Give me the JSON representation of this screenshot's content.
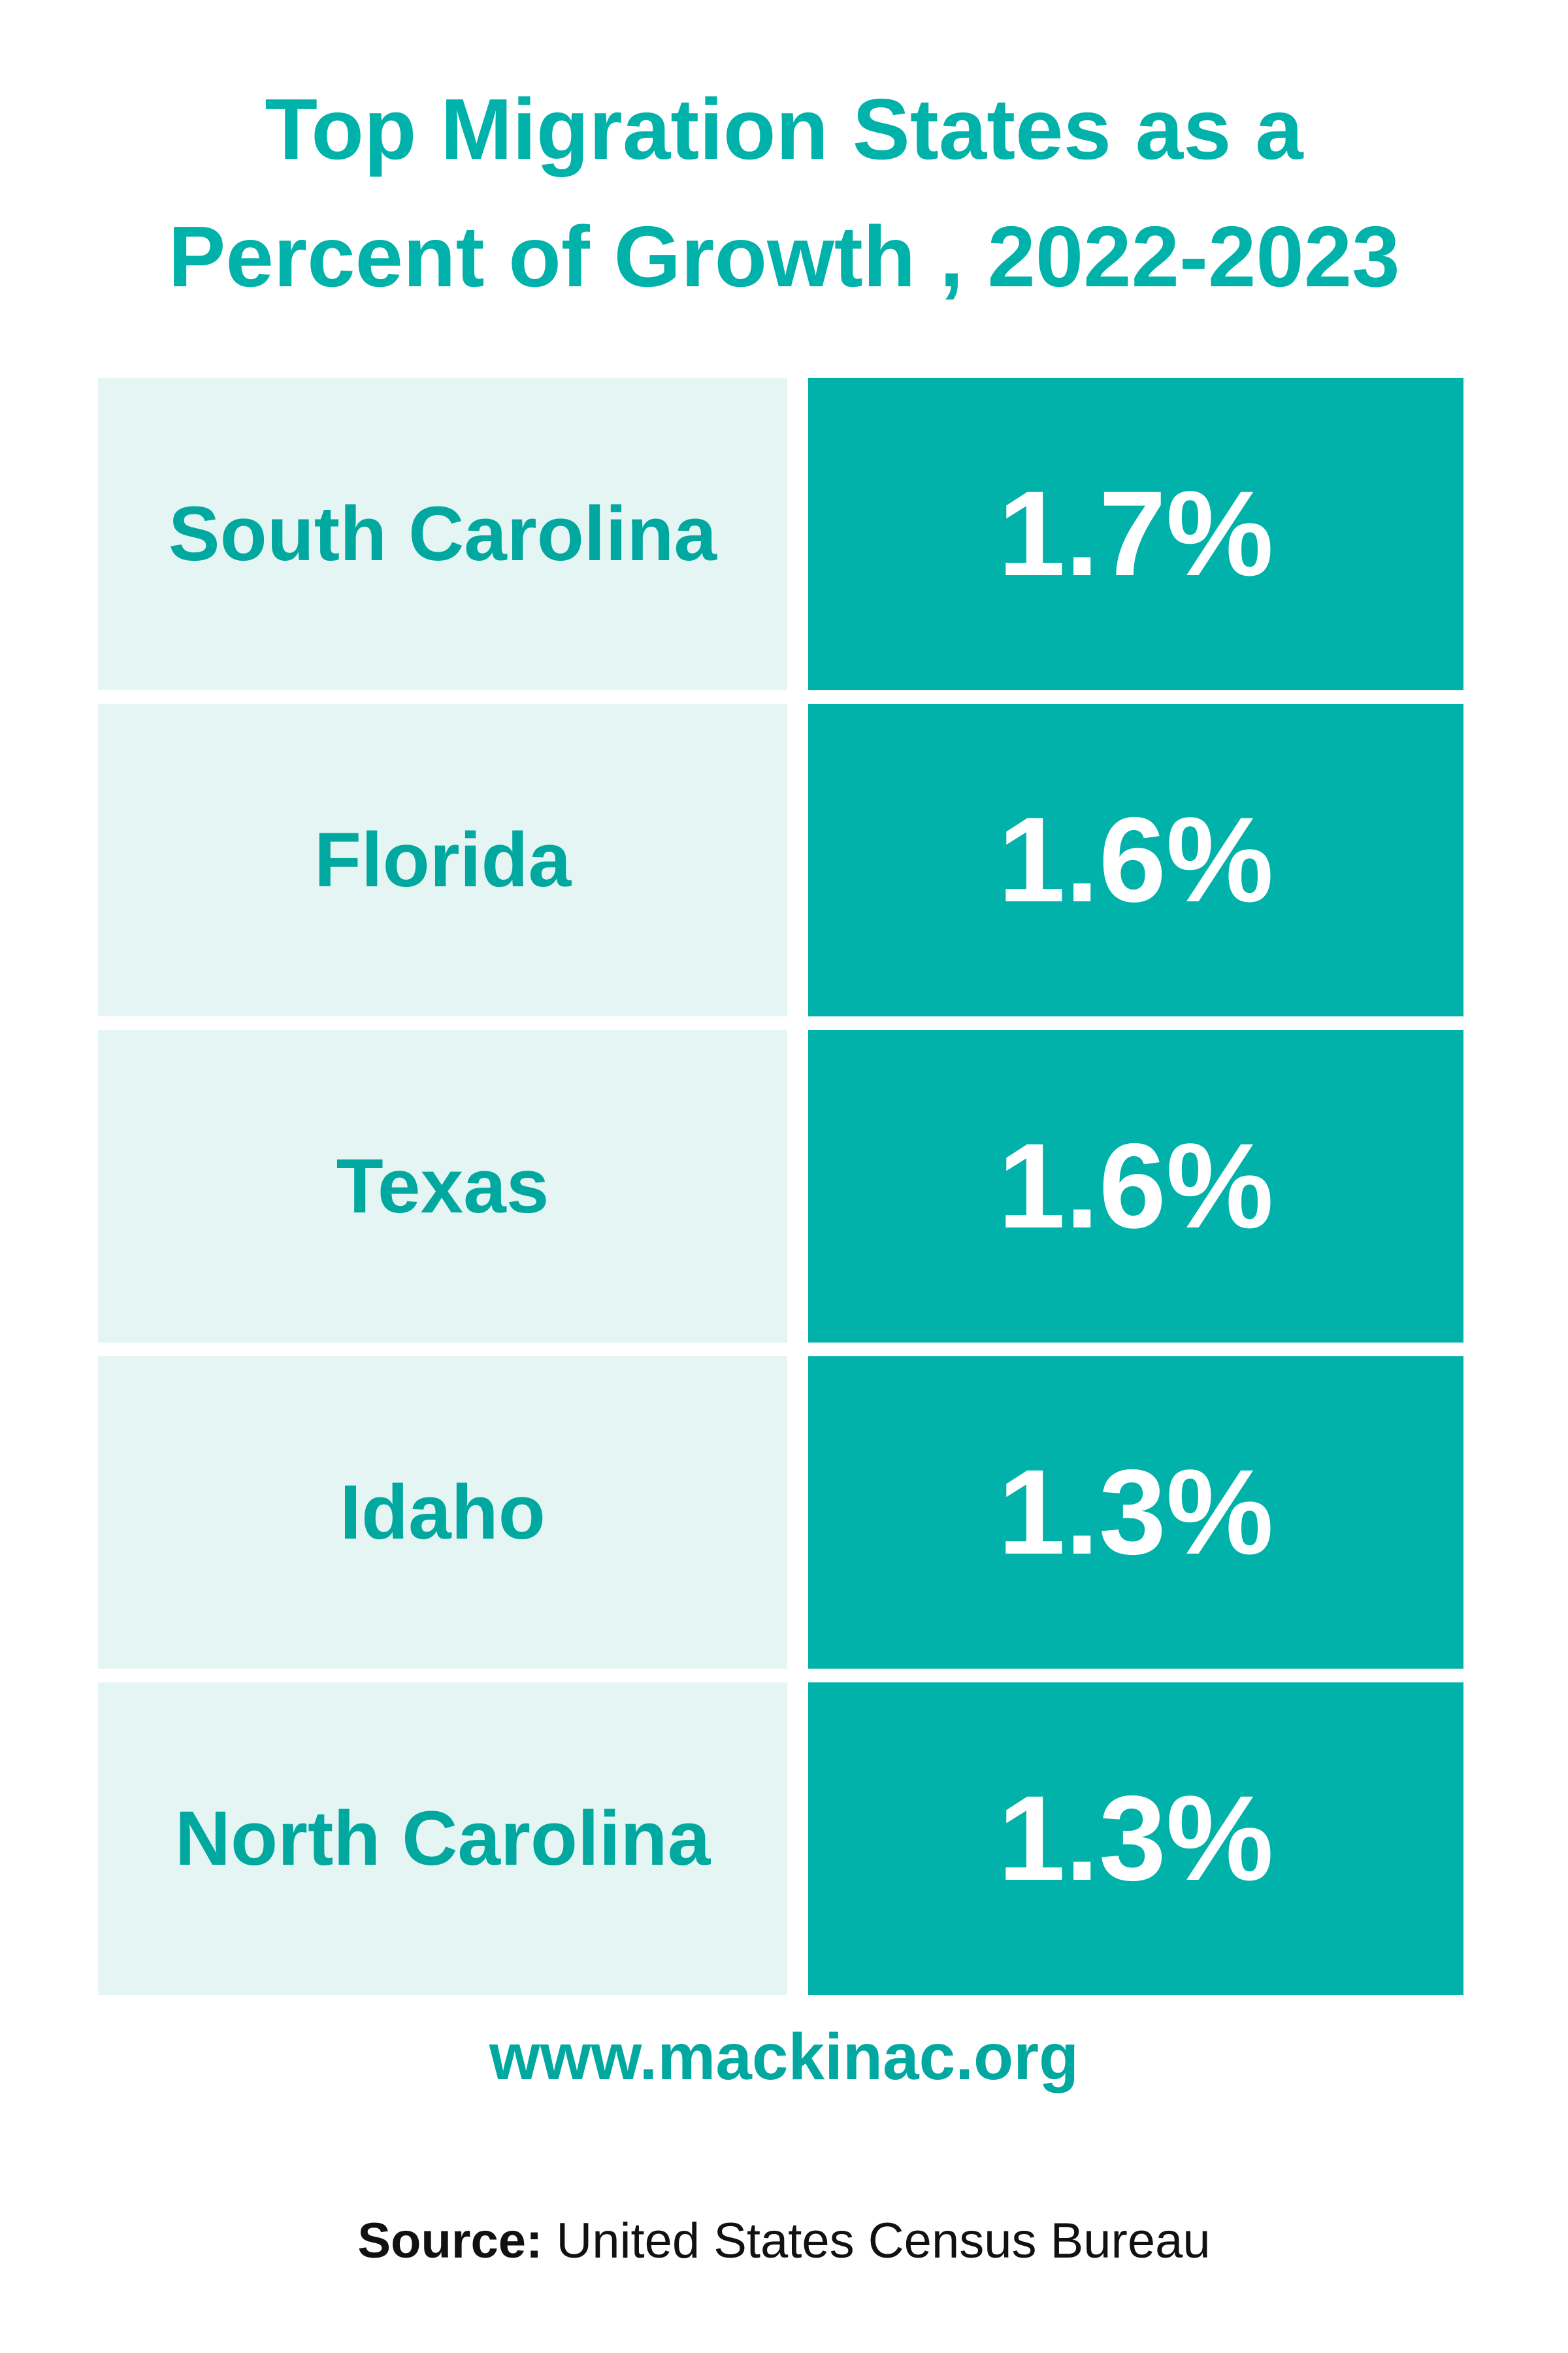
{
  "title": [
    "Top Migration States as a",
    "Percent of Growth , 2022-2023"
  ],
  "table": {
    "rows": [
      [
        "South Carolina",
        "1.7%"
      ],
      [
        "Florida",
        "1.6%"
      ],
      [
        "Texas",
        "1.6%"
      ],
      [
        "Idaho",
        "1.3%"
      ],
      [
        "North Carolina",
        "1.3%"
      ]
    ]
  },
  "website": "www.mackinac.org",
  "source": {
    "label": "Source:",
    "text": "United States Census Bureau"
  }
}
